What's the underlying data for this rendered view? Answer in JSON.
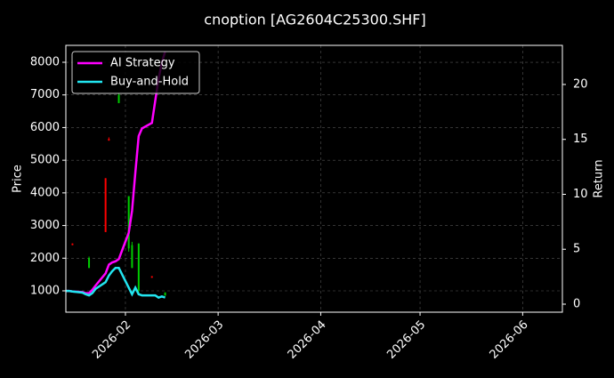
{
  "chart_data": {
    "type": "candlestick",
    "title": "cnoption [AG2604C25300.SHF]",
    "ylabel": "Price",
    "y2label": "Return",
    "xlim": [
      "2026-01-14",
      "2026-06-13"
    ],
    "xticks": [
      {
        "value": "2026-02-01",
        "label": "2026-02"
      },
      {
        "value": "2026-03-01",
        "label": "2026-03"
      },
      {
        "value": "2026-04-01",
        "label": "2026-04"
      },
      {
        "value": "2026-05-01",
        "label": "2026-05"
      },
      {
        "value": "2026-06-01",
        "label": "2026-06"
      }
    ],
    "ylim": [
      346,
      8518
    ],
    "yticks": [
      1000,
      2000,
      3000,
      4000,
      5000,
      6000,
      7000,
      8000
    ],
    "y2lim": [
      -0.73,
      23.56
    ],
    "y2ticks": [
      0,
      5,
      10,
      15,
      20
    ],
    "grid": true,
    "legend": "upper left",
    "candles": {
      "x": [
        "2026-01-16",
        "2026-01-21",
        "2026-01-26",
        "2026-01-27",
        "2026-01-30",
        "2026-02-02",
        "2026-02-03",
        "2026-02-05",
        "2026-02-09",
        "2026-02-13"
      ],
      "open": [
        2400,
        2000,
        2800,
        5600,
        7000,
        3900,
        2400,
        2450,
        1400,
        950
      ],
      "high": [
        2450,
        2050,
        4450,
        5700,
        7050,
        3900,
        2500,
        2450,
        1450,
        950
      ],
      "low": [
        2400,
        1700,
        2800,
        5600,
        6750,
        2200,
        1700,
        950,
        1400,
        850
      ],
      "close": [
        2450,
        1700,
        4450,
        5650,
        6750,
        2300,
        1700,
        1000,
        1450,
        850
      ],
      "up_color": "#ff0000",
      "down_color": "#00cc00"
    },
    "x": [
      "2026-01-14",
      "2026-01-15",
      "2026-01-16",
      "2026-01-19",
      "2026-01-20",
      "2026-01-21",
      "2026-01-22",
      "2026-01-23",
      "2026-01-26",
      "2026-01-27",
      "2026-01-28",
      "2026-01-29",
      "2026-01-30",
      "2026-02-02",
      "2026-02-03",
      "2026-02-04",
      "2026-02-05",
      "2026-02-06",
      "2026-02-09",
      "2026-02-10",
      "2026-02-11",
      "2026-02-12",
      "2026-02-13"
    ],
    "series": [
      {
        "name": "AI Strategy",
        "color": "#ff00ff",
        "axis": "y2",
        "values": [
          1.2,
          1.2,
          1.15,
          1.1,
          1.0,
          1.0,
          1.3,
          1.7,
          2.8,
          3.6,
          3.8,
          3.9,
          4.1,
          6.5,
          8.5,
          12,
          15.3,
          16,
          16.5,
          18.5,
          20.5,
          22,
          23
        ]
      },
      {
        "name": "Buy-and-Hold",
        "color": "#22e5f0",
        "axis": "y2",
        "values": [
          1.2,
          1.2,
          1.15,
          1.05,
          0.9,
          0.8,
          1.0,
          1.4,
          2.0,
          2.6,
          3.0,
          3.3,
          3.3,
          1.5,
          0.9,
          1.5,
          0.9,
          0.8,
          0.8,
          0.8,
          0.6,
          0.7,
          0.6
        ]
      }
    ]
  }
}
